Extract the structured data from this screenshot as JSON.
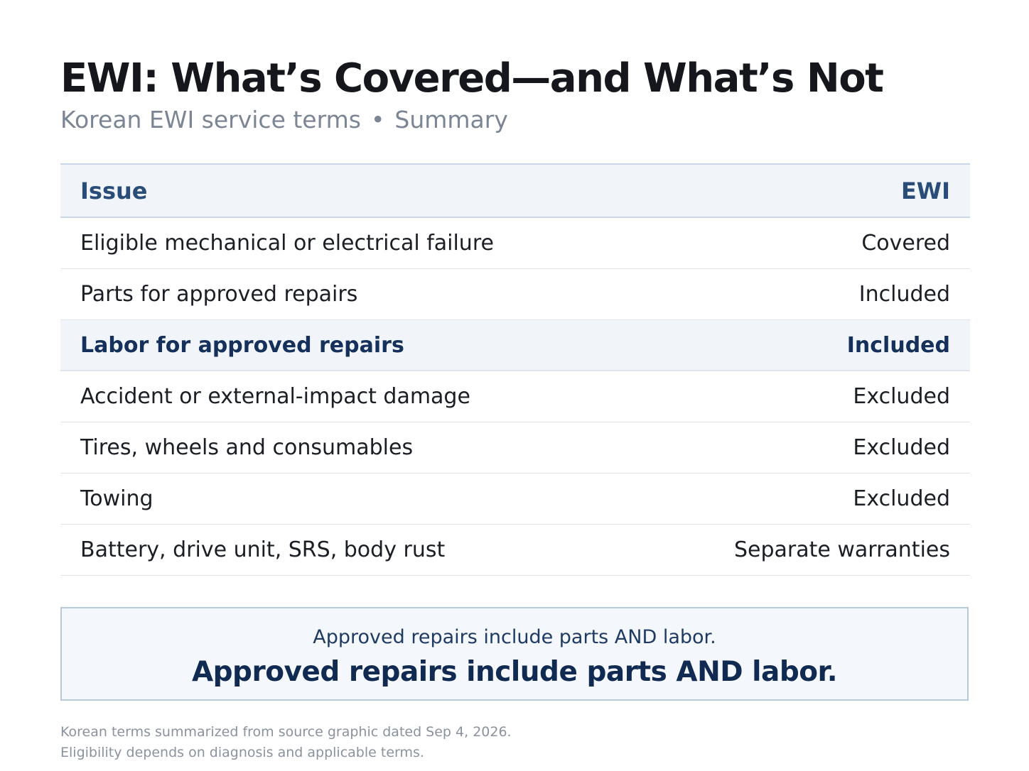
{
  "header": {
    "title": "EWI: What’s Covered—and What’s Not",
    "subtitle_left": "Korean EWI service terms",
    "subtitle_separator": "•",
    "subtitle_right": "Summary"
  },
  "table": {
    "columns": {
      "issue": "Issue",
      "ewi": "EWI"
    },
    "rows": [
      {
        "issue": "Eligible mechanical or electrical failure",
        "ewi": "Covered"
      },
      {
        "issue": "Parts for approved repairs",
        "ewi": "Included"
      },
      {
        "issue": "Labor for approved repairs",
        "ewi": "Included"
      },
      {
        "issue": "Accident or external-impact damage",
        "ewi": "Excluded"
      },
      {
        "issue": "Tires, wheels and consumables",
        "ewi": "Excluded"
      },
      {
        "issue": "Towing",
        "ewi": "Excluded"
      },
      {
        "issue": "Battery, drive unit, SRS, body rust",
        "ewi": "Separate warranties"
      }
    ]
  },
  "callout": {
    "small_text": "Approved repairs include parts AND labor.",
    "big_text": "Approved repairs include parts AND labor."
  },
  "footnote": {
    "line1": "Korean terms summarized from source graphic dated Sep 4, 2026.",
    "line2": "Eligibility depends on diagnosis and applicable terms."
  },
  "colors": {
    "highlight_background": "#f1f5fa",
    "header_text": "#2a4c78",
    "callout_text": "#112a52"
  }
}
